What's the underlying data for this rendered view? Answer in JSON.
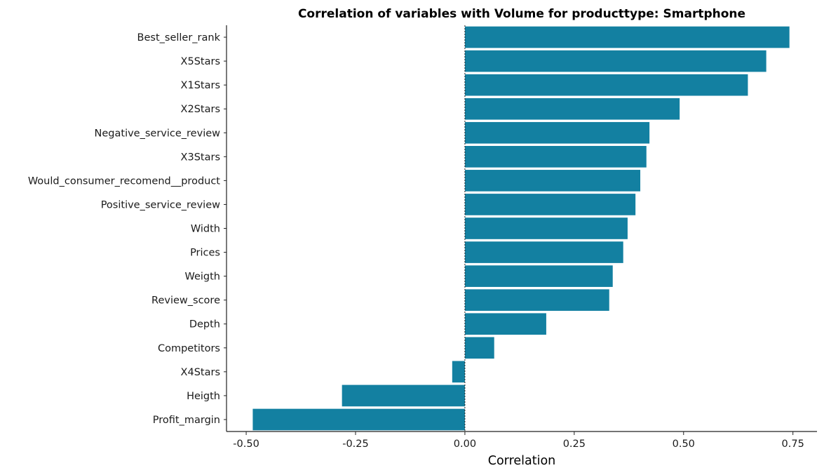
{
  "chart_data": {
    "type": "bar",
    "orientation": "horizontal",
    "title": "Correlation of variables with Volume for producttype:  Smartphone",
    "xlabel": "Correlation",
    "ylabel": "",
    "categories": [
      "Best_seller_rank",
      "X5Stars",
      "X1Stars",
      "X2Stars",
      "Negative_service_review",
      "X3Stars",
      "Would_consumer_recomend__product",
      "Positive_service_review",
      "Width",
      "Prices",
      "Weigth",
      "Review_score",
      "Depth",
      "Competitors",
      "X4Stars",
      "Heigth",
      "Profit_margin"
    ],
    "values": [
      0.742,
      0.689,
      0.647,
      0.491,
      0.422,
      0.415,
      0.401,
      0.39,
      0.372,
      0.362,
      0.338,
      0.33,
      0.186,
      0.067,
      -0.029,
      -0.281,
      -0.485
    ],
    "xlim": [
      -0.545,
      0.805
    ],
    "xticks": [
      -0.5,
      -0.25,
      0.0,
      0.25,
      0.5,
      0.75
    ],
    "xtick_labels": [
      "-0.50",
      "-0.25",
      "0.00",
      "0.25",
      "0.50",
      "0.75"
    ],
    "bar_color": "#1380a1",
    "zero_line": "dotted",
    "grid": false,
    "legend": "none"
  }
}
